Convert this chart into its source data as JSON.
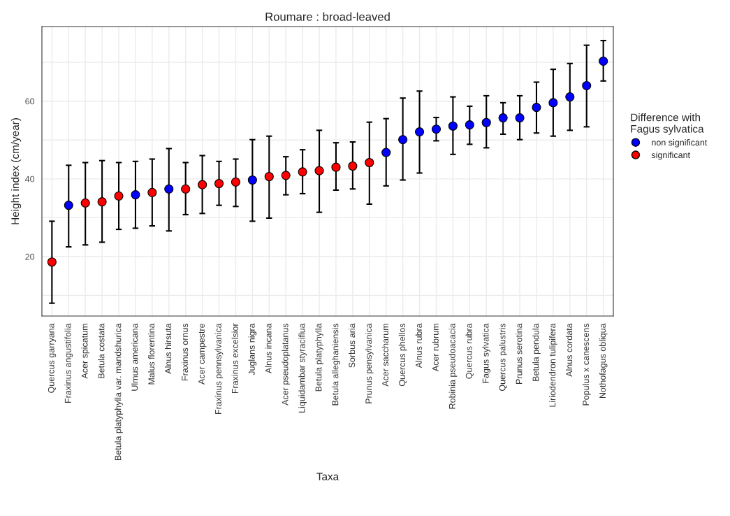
{
  "chart_data": {
    "type": "scatter",
    "title": "Roumare : broad-leaved",
    "xlabel": "Taxa",
    "ylabel": "Height index (cm/year)",
    "legend_title": "Difference with\nFagus sylvatica",
    "categories": [
      "Quercus garryana",
      "Fraxinus angustifolia",
      "Acer spicatum",
      "Betula costata",
      "Betula platyphylla var. mandshurica",
      "Ulmus americana",
      "Malus florentina",
      "Alnus hirsuta",
      "Fraxinus ornus",
      "Acer campestre",
      "Fraxinus pennsylvanica",
      "Fraxinus excelsior",
      "Juglans nigra",
      "Alnus incana",
      "Acer pseudoplatanus",
      "Liquidambar styraciflua",
      "Betula platyphylla",
      "Betula alleghaniensis",
      "Sorbus aria",
      "Prunus pensylvanica",
      "Acer saccharum",
      "Quercus phellos",
      "Alnus rubra",
      "Acer rubrum",
      "Robinia pseudoacacia",
      "Quercus rubra",
      "Fagus sylvatica",
      "Quercus palustris",
      "Prunus serotina",
      "Betula pendula",
      "Liriodendron tulipifera",
      "Alnus cordata",
      "Populus x canescens",
      "Nothofagus obliqua"
    ],
    "series": [
      {
        "name": "non significant",
        "color": "#0000ff",
        "values": [
          null,
          33.2,
          null,
          null,
          null,
          35.9,
          null,
          37.4,
          null,
          null,
          null,
          null,
          39.7,
          null,
          null,
          null,
          null,
          null,
          null,
          null,
          46.8,
          50.1,
          52.1,
          52.8,
          53.6,
          53.9,
          54.5,
          55.7,
          55.7,
          58.4,
          59.6,
          61.1,
          64.0,
          70.3
        ],
        "errors": [
          null,
          [
            22.5,
            43.5
          ],
          null,
          null,
          null,
          [
            27.3,
            44.5
          ],
          null,
          [
            26.6,
            47.8
          ],
          null,
          null,
          null,
          null,
          [
            29.1,
            50.1
          ],
          null,
          null,
          null,
          null,
          null,
          null,
          null,
          [
            38.2,
            55.5
          ],
          [
            39.7,
            60.8
          ],
          [
            41.5,
            62.6
          ],
          [
            49.8,
            55.8
          ],
          [
            46.3,
            61.1
          ],
          [
            48.9,
            58.7
          ],
          [
            48.0,
            61.4
          ],
          [
            51.5,
            59.6
          ],
          [
            50.1,
            61.4
          ],
          [
            51.8,
            64.9
          ],
          [
            51.0,
            68.2
          ],
          [
            52.5,
            69.7
          ],
          [
            53.4,
            74.4
          ],
          [
            65.2,
            75.6
          ]
        ]
      },
      {
        "name": "significant",
        "color": "#ff0000",
        "values": [
          18.6,
          null,
          33.8,
          34.1,
          35.6,
          null,
          36.5,
          null,
          37.4,
          38.5,
          38.8,
          39.2,
          null,
          40.6,
          40.9,
          41.8,
          42.1,
          43.0,
          43.3,
          44.2,
          null,
          null,
          null,
          null,
          null,
          null,
          null,
          null,
          null,
          null,
          null,
          null,
          null,
          null
        ],
        "errors": [
          [
            8.0,
            29.1
          ],
          null,
          [
            23.0,
            44.2
          ],
          [
            23.7,
            44.7
          ],
          [
            27.0,
            44.2
          ],
          null,
          [
            27.9,
            45.1
          ],
          null,
          [
            30.8,
            44.2
          ],
          [
            31.1,
            46.0
          ],
          [
            33.2,
            44.5
          ],
          [
            32.9,
            45.1
          ],
          null,
          [
            29.9,
            51.0
          ],
          [
            35.9,
            45.7
          ],
          [
            36.2,
            47.5
          ],
          [
            31.4,
            52.5
          ],
          [
            37.1,
            49.3
          ],
          [
            37.4,
            49.5
          ],
          [
            33.5,
            54.6
          ],
          null,
          null,
          null,
          null,
          null,
          null,
          null,
          null,
          null,
          null,
          null,
          null,
          null,
          null
        ]
      }
    ],
    "ylim": [
      4.7,
      79.2
    ],
    "yticks": [
      {
        "value": 10,
        "label": null
      },
      20,
      {
        "value": 30,
        "label": null
      },
      40,
      {
        "value": 50,
        "label": null
      },
      60,
      {
        "value": 70,
        "label": null
      }
    ],
    "grid": true,
    "legend": "right",
    "marker": "circle"
  }
}
